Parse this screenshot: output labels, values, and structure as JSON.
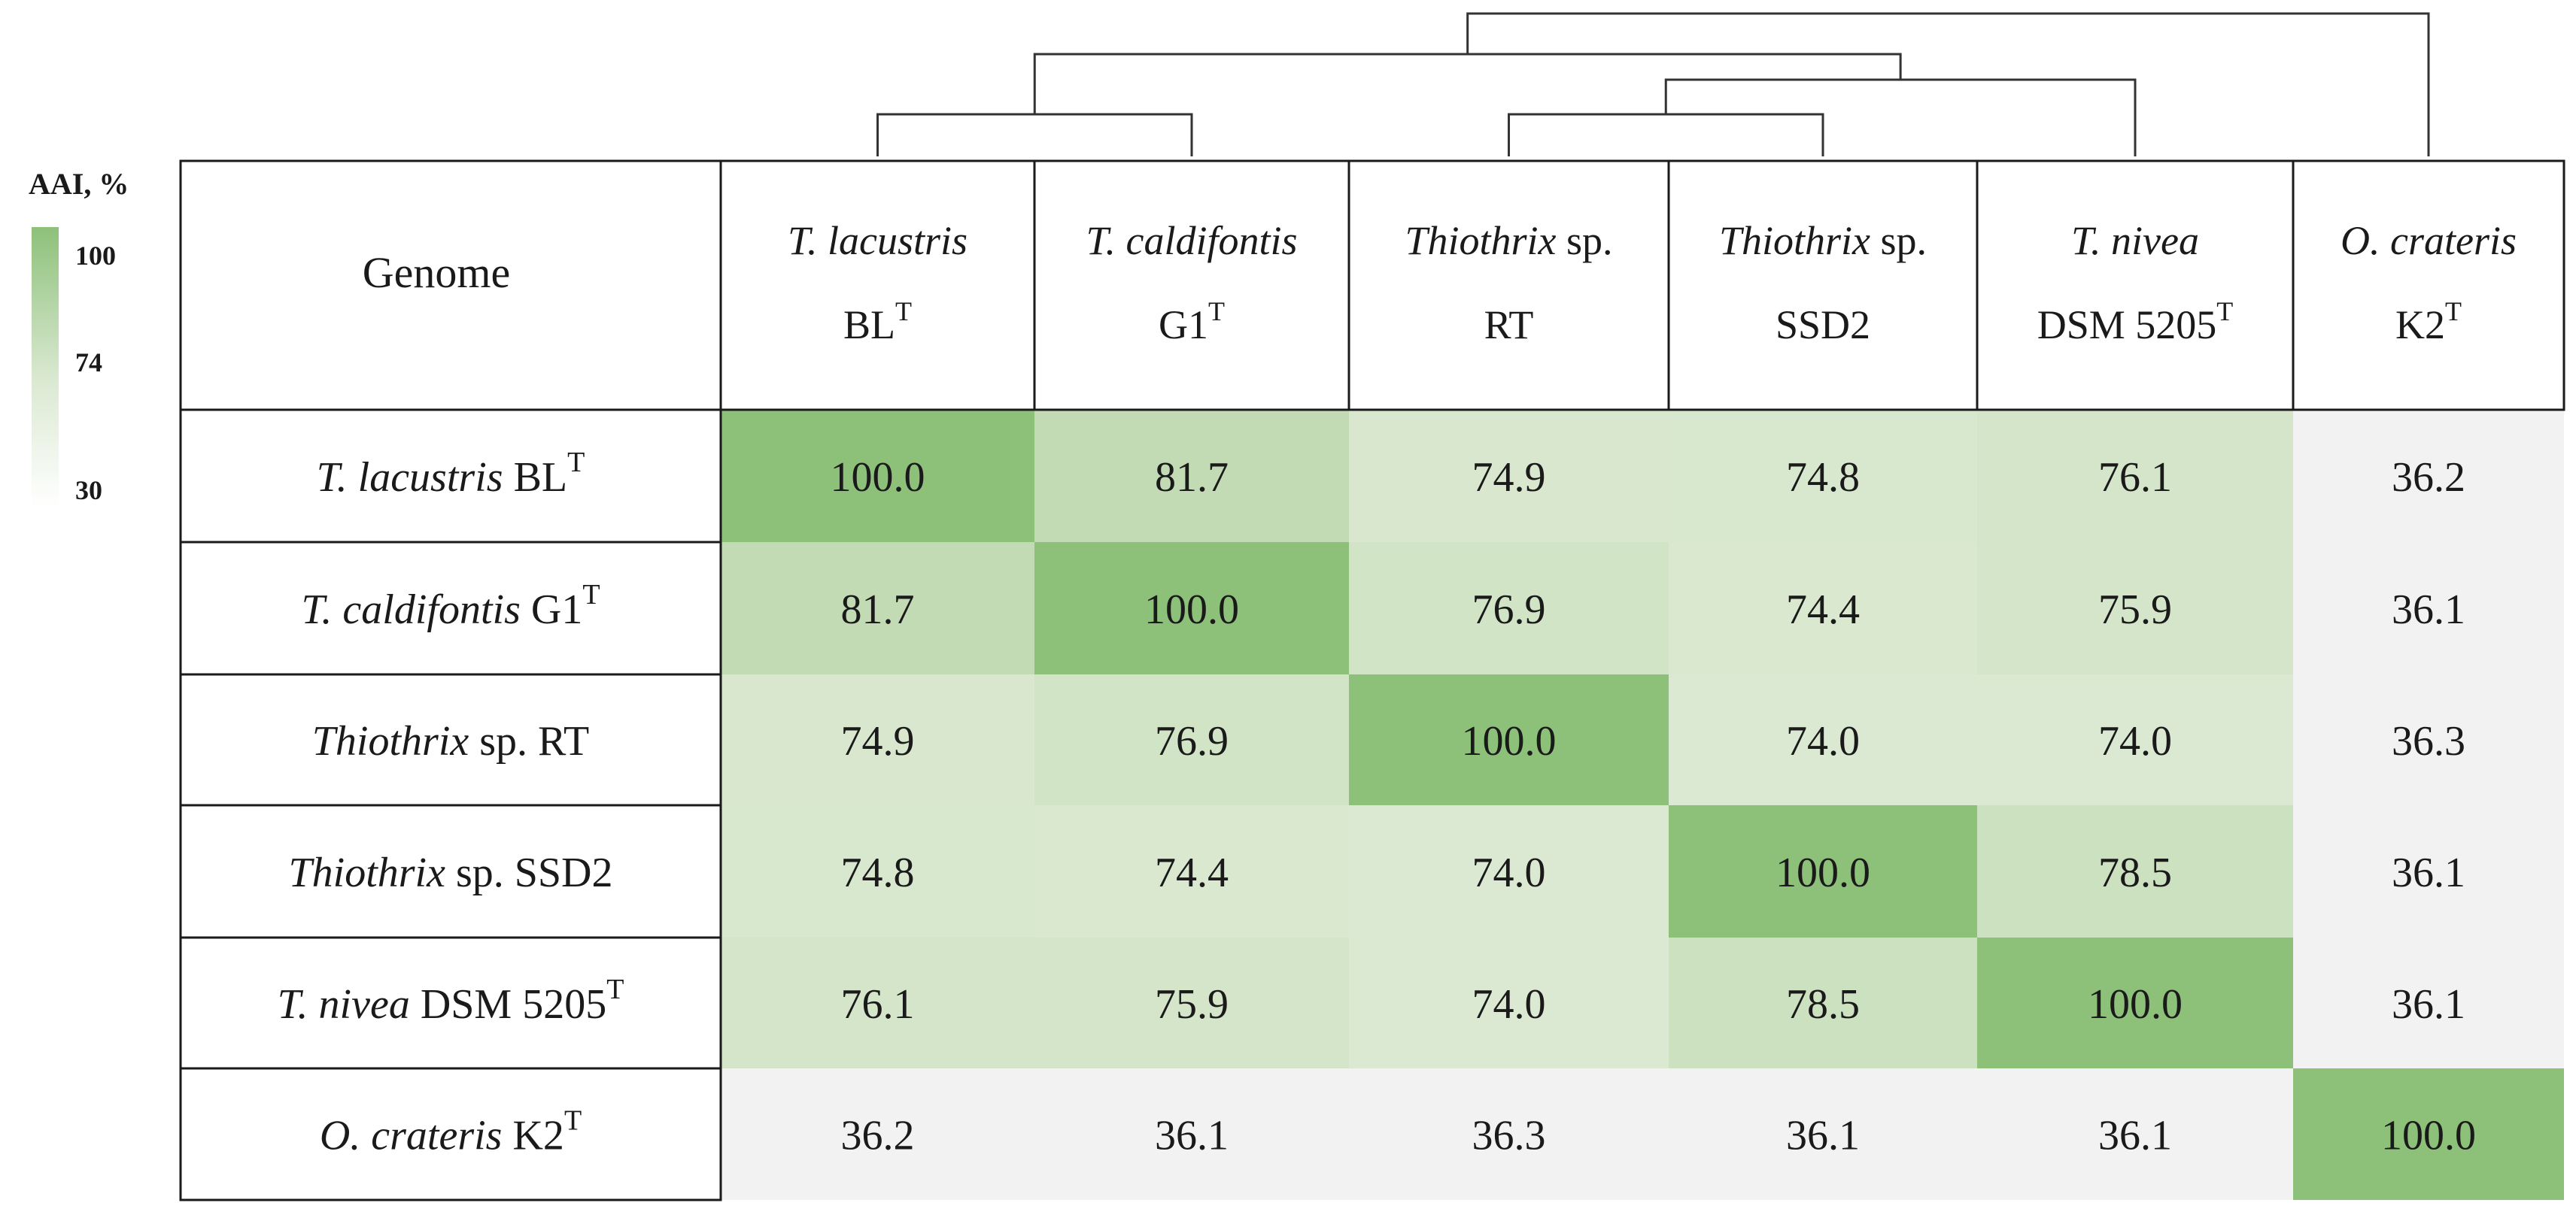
{
  "chart_data": {
    "type": "heatmap",
    "legend": {
      "title": "AAI, %",
      "ticks": [
        "100",
        "74",
        "30"
      ],
      "values": [
        100,
        74,
        30
      ],
      "colors": [
        "#8dc17a",
        "#dbe9d2",
        "#f2f2f2"
      ]
    },
    "corner_label": "Genome",
    "columns": [
      {
        "italic": "T. lacustris",
        "roman": "",
        "line2": "BL",
        "sup": "T"
      },
      {
        "italic": "T. caldifontis",
        "roman": "",
        "line2": "G1",
        "sup": "T"
      },
      {
        "italic": "Thiothrix",
        "roman": " sp.",
        "line2": "RT",
        "sup": ""
      },
      {
        "italic": "Thiothrix",
        "roman": " sp.",
        "line2": "SSD2",
        "sup": ""
      },
      {
        "italic": "T. nivea",
        "roman": "",
        "line2": "DSM 5205",
        "sup": "T"
      },
      {
        "italic": "O. crateris",
        "roman": "",
        "line2": "K2",
        "sup": "T"
      }
    ],
    "rows": [
      {
        "italic": "T. lacustris",
        "roman": " BL",
        "sup": "T"
      },
      {
        "italic": "T. caldifontis",
        "roman": " G1",
        "sup": "T"
      },
      {
        "italic": "Thiothrix",
        "roman": " sp. RT",
        "sup": ""
      },
      {
        "italic": "Thiothrix",
        "roman": " sp. SSD2",
        "sup": ""
      },
      {
        "italic": "T. nivea",
        "roman": " DSM 5205",
        "sup": "T"
      },
      {
        "italic": "O. crateris",
        "roman": " K2",
        "sup": "T"
      }
    ],
    "values": [
      [
        "100.0",
        "81.7",
        "74.9",
        "74.8",
        "76.1",
        "36.2"
      ],
      [
        "81.7",
        "100.0",
        "76.9",
        "74.4",
        "75.9",
        "36.1"
      ],
      [
        "74.9",
        "76.9",
        "100.0",
        "74.0",
        "74.0",
        "36.3"
      ],
      [
        "74.8",
        "74.4",
        "74.0",
        "100.0",
        "78.5",
        "36.1"
      ],
      [
        "76.1",
        "75.9",
        "74.0",
        "78.5",
        "100.0",
        "36.1"
      ],
      [
        "36.2",
        "36.1",
        "36.3",
        "36.1",
        "36.1",
        "100.0"
      ]
    ],
    "dendrogram": {
      "merges": [
        [
          0,
          1
        ],
        [
          2,
          3
        ],
        [
          7,
          4
        ],
        [
          6,
          8
        ],
        [
          9,
          5
        ]
      ]
    }
  }
}
